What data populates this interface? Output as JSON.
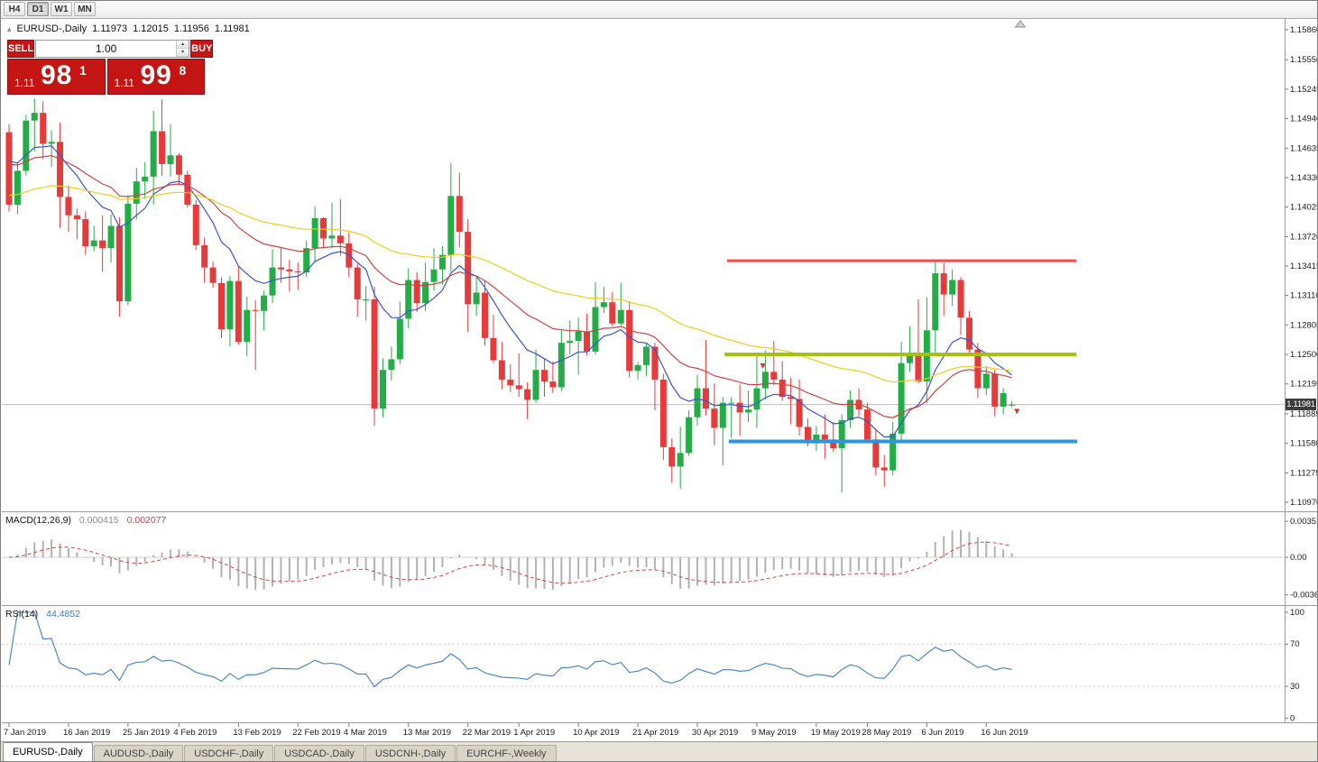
{
  "toolbar": {
    "timeframes": [
      {
        "label": "H4",
        "active": false
      },
      {
        "label": "D1",
        "active": true
      },
      {
        "label": "W1",
        "active": false
      },
      {
        "label": "MN",
        "active": false
      }
    ]
  },
  "chart_header": {
    "symbol": "EURUSD-,Daily",
    "open": "1.11973",
    "high": "1.12015",
    "low": "1.11956",
    "close": "1.11981"
  },
  "trade_panel": {
    "sell_label": "SELL",
    "buy_label": "BUY",
    "volume": "1.00",
    "sell_price": {
      "small": "1.11",
      "big": "98",
      "sup": "1"
    },
    "buy_price": {
      "small": "1.11",
      "big": "99",
      "sup": "8"
    }
  },
  "price_axis": {
    "labels": [
      "1.15860",
      "1.15550",
      "1.15245",
      "1.14940",
      "1.14635",
      "1.14330",
      "1.14025",
      "1.13720",
      "1.13415",
      "1.13110",
      "1.12805",
      "1.12500",
      "1.12195",
      "1.11885",
      "1.11580",
      "1.11275",
      "1.10970"
    ],
    "current": "1.11981"
  },
  "indicators": {
    "macd": {
      "label": "MACD(12,26,9)",
      "value_main": "0.000415",
      "value_signal": "0.002077",
      "axis": [
        "0.003518",
        "0.00",
        "-0.00367"
      ]
    },
    "rsi": {
      "label": "RSI(14)",
      "value": "44.4852",
      "axis": [
        "100",
        "70",
        "30",
        "0"
      ]
    }
  },
  "date_axis": {
    "labels": [
      {
        "text": "7 Jan 2019",
        "index": 0
      },
      {
        "text": "16 Jan 2019",
        "index": 7
      },
      {
        "text": "25 Jan 2019",
        "index": 14
      },
      {
        "text": "4 Feb 2019",
        "index": 20
      },
      {
        "text": "13 Feb 2019",
        "index": 27
      },
      {
        "text": "22 Feb 2019",
        "index": 34
      },
      {
        "text": "4 Mar 2019",
        "index": 40
      },
      {
        "text": "13 Mar 2019",
        "index": 47
      },
      {
        "text": "22 Mar 2019",
        "index": 54
      },
      {
        "text": "1 Apr 2019",
        "index": 60
      },
      {
        "text": "10 Apr 2019",
        "index": 67
      },
      {
        "text": "21 Apr 2019",
        "index": 74
      },
      {
        "text": "30 Apr 2019",
        "index": 81
      },
      {
        "text": "9 May 2019",
        "index": 88
      },
      {
        "text": "19 May 2019",
        "index": 95
      },
      {
        "text": "28 May 2019",
        "index": 101
      },
      {
        "text": "6 Jun 2019",
        "index": 108
      },
      {
        "text": "16 Jun 2019",
        "index": 115
      }
    ]
  },
  "tabs": [
    {
      "label": "EURUSD-,Daily",
      "active": true
    },
    {
      "label": "AUDUSD-,Daily",
      "active": false
    },
    {
      "label": "USDCHF-,Daily",
      "active": false
    },
    {
      "label": "USDCAD-,Daily",
      "active": false
    },
    {
      "label": "USDCNH-,Daily",
      "active": false
    },
    {
      "label": "EURCHF-,Weekly",
      "active": false
    }
  ],
  "chart_data": {
    "type": "candlestick",
    "symbol": "EURUSD",
    "timeframe": "Daily",
    "title": "EURUSD-,Daily",
    "ylim": [
      1.1097,
      1.1586
    ],
    "colors": {
      "up": "#22ad46",
      "down": "#e73b3b"
    },
    "ohlc": [
      [
        1.148,
        1.1488,
        1.1398,
        1.1405
      ],
      [
        1.1405,
        1.1448,
        1.1395,
        1.144
      ],
      [
        1.144,
        1.1498,
        1.1435,
        1.1492
      ],
      [
        1.1492,
        1.1515,
        1.146,
        1.15
      ],
      [
        1.15,
        1.1512,
        1.1452,
        1.1468
      ],
      [
        1.1468,
        1.1482,
        1.1444,
        1.147
      ],
      [
        1.147,
        1.149,
        1.1381,
        1.1413
      ],
      [
        1.1413,
        1.1425,
        1.1377,
        1.1394
      ],
      [
        1.1394,
        1.1401,
        1.1369,
        1.139
      ],
      [
        1.139,
        1.1398,
        1.1353,
        1.1362
      ],
      [
        1.1362,
        1.1383,
        1.1357,
        1.1368
      ],
      [
        1.1368,
        1.1394,
        1.1336,
        1.136
      ],
      [
        1.136,
        1.1395,
        1.1345,
        1.1383
      ],
      [
        1.1383,
        1.1392,
        1.1289,
        1.1305
      ],
      [
        1.1305,
        1.1415,
        1.1301,
        1.1406
      ],
      [
        1.1406,
        1.1443,
        1.139,
        1.1429
      ],
      [
        1.1429,
        1.1449,
        1.1411,
        1.1434
      ],
      [
        1.1434,
        1.1502,
        1.1405,
        1.1481
      ],
      [
        1.1481,
        1.1514,
        1.1435,
        1.1447
      ],
      [
        1.1447,
        1.1488,
        1.1434,
        1.1456
      ],
      [
        1.1456,
        1.1458,
        1.1425,
        1.1436
      ],
      [
        1.1436,
        1.144,
        1.1402,
        1.1405
      ],
      [
        1.1405,
        1.141,
        1.1358,
        1.1363
      ],
      [
        1.1363,
        1.1371,
        1.1324,
        1.134
      ],
      [
        1.134,
        1.1346,
        1.1319,
        1.1324
      ],
      [
        1.1324,
        1.133,
        1.1267,
        1.1276
      ],
      [
        1.1276,
        1.1331,
        1.1258,
        1.1326
      ],
      [
        1.1326,
        1.1341,
        1.126,
        1.1263
      ],
      [
        1.1263,
        1.131,
        1.1248,
        1.1296
      ],
      [
        1.1296,
        1.1306,
        1.1234,
        1.1295
      ],
      [
        1.1295,
        1.1316,
        1.1275,
        1.1311
      ],
      [
        1.1311,
        1.1359,
        1.1303,
        1.134
      ],
      [
        1.134,
        1.136,
        1.1324,
        1.1338
      ],
      [
        1.1338,
        1.1348,
        1.1315,
        1.1336
      ],
      [
        1.1336,
        1.1345,
        1.1317,
        1.1335
      ],
      [
        1.1335,
        1.1368,
        1.133,
        1.136
      ],
      [
        1.136,
        1.1403,
        1.1345,
        1.1391
      ],
      [
        1.1391,
        1.1392,
        1.136,
        1.137
      ],
      [
        1.137,
        1.1407,
        1.136,
        1.1373
      ],
      [
        1.1373,
        1.1411,
        1.1352,
        1.1365
      ],
      [
        1.1365,
        1.1376,
        1.133,
        1.134
      ],
      [
        1.134,
        1.1344,
        1.1289,
        1.1307
      ],
      [
        1.1307,
        1.1321,
        1.1285,
        1.1307
      ],
      [
        1.1307,
        1.132,
        1.1176,
        1.1194
      ],
      [
        1.1194,
        1.1246,
        1.1185,
        1.1234
      ],
      [
        1.1234,
        1.1258,
        1.1223,
        1.1245
      ],
      [
        1.1245,
        1.1305,
        1.124,
        1.1287
      ],
      [
        1.1287,
        1.1339,
        1.1277,
        1.1327
      ],
      [
        1.1327,
        1.1335,
        1.1294,
        1.1303
      ],
      [
        1.1303,
        1.1345,
        1.1295,
        1.1325
      ],
      [
        1.1325,
        1.136,
        1.1316,
        1.1338
      ],
      [
        1.1338,
        1.1362,
        1.1322,
        1.1353
      ],
      [
        1.1353,
        1.1448,
        1.1336,
        1.1414
      ],
      [
        1.1414,
        1.1438,
        1.1361,
        1.1377
      ],
      [
        1.1377,
        1.139,
        1.1273,
        1.1302
      ],
      [
        1.1302,
        1.133,
        1.129,
        1.1314
      ],
      [
        1.1314,
        1.1327,
        1.1259,
        1.1267
      ],
      [
        1.1267,
        1.1291,
        1.1241,
        1.1244
      ],
      [
        1.1244,
        1.1263,
        1.1214,
        1.1224
      ],
      [
        1.1224,
        1.124,
        1.1211,
        1.1218
      ],
      [
        1.1218,
        1.1251,
        1.1206,
        1.1214
      ],
      [
        1.1214,
        1.1221,
        1.1183,
        1.1203
      ],
      [
        1.1203,
        1.1255,
        1.12,
        1.1234
      ],
      [
        1.1234,
        1.1245,
        1.1206,
        1.1222
      ],
      [
        1.1222,
        1.1243,
        1.121,
        1.1216
      ],
      [
        1.1216,
        1.1275,
        1.1212,
        1.1262
      ],
      [
        1.1262,
        1.1285,
        1.125,
        1.1264
      ],
      [
        1.1264,
        1.1288,
        1.1229,
        1.1274
      ],
      [
        1.1274,
        1.1292,
        1.1249,
        1.1253
      ],
      [
        1.1253,
        1.1325,
        1.125,
        1.1299
      ],
      [
        1.1299,
        1.132,
        1.1293,
        1.1304
      ],
      [
        1.1304,
        1.1315,
        1.1279,
        1.1282
      ],
      [
        1.1282,
        1.1324,
        1.128,
        1.1296
      ],
      [
        1.1296,
        1.1305,
        1.1226,
        1.1233
      ],
      [
        1.1233,
        1.1242,
        1.1224,
        1.1239
      ],
      [
        1.1239,
        1.1262,
        1.1228,
        1.1258
      ],
      [
        1.1258,
        1.1262,
        1.1192,
        1.1224
      ],
      [
        1.1224,
        1.123,
        1.1141,
        1.1154
      ],
      [
        1.1154,
        1.1163,
        1.1117,
        1.1134
      ],
      [
        1.1134,
        1.1175,
        1.1111,
        1.1148
      ],
      [
        1.1148,
        1.1192,
        1.1145,
        1.1185
      ],
      [
        1.1185,
        1.1229,
        1.1176,
        1.1215
      ],
      [
        1.1215,
        1.1265,
        1.1187,
        1.1194
      ],
      [
        1.1194,
        1.122,
        1.1156,
        1.1174
      ],
      [
        1.1174,
        1.1206,
        1.1135,
        1.12
      ],
      [
        1.12,
        1.1206,
        1.1164,
        1.12
      ],
      [
        1.12,
        1.1219,
        1.1166,
        1.119
      ],
      [
        1.119,
        1.1213,
        1.118,
        1.1193
      ],
      [
        1.1193,
        1.1251,
        1.1174,
        1.1215
      ],
      [
        1.1215,
        1.1254,
        1.1203,
        1.1232
      ],
      [
        1.1232,
        1.1264,
        1.1218,
        1.1224
      ],
      [
        1.1224,
        1.1243,
        1.1202,
        1.1206
      ],
      [
        1.1206,
        1.1226,
        1.1178,
        1.1204
      ],
      [
        1.1204,
        1.1224,
        1.1166,
        1.1175
      ],
      [
        1.1175,
        1.1184,
        1.1155,
        1.1158
      ],
      [
        1.1158,
        1.1176,
        1.115,
        1.1167
      ],
      [
        1.1167,
        1.1188,
        1.1142,
        1.1162
      ],
      [
        1.1162,
        1.118,
        1.1149,
        1.1153
      ],
      [
        1.1153,
        1.1188,
        1.1107,
        1.1182
      ],
      [
        1.1182,
        1.1213,
        1.1174,
        1.1203
      ],
      [
        1.1203,
        1.1215,
        1.1186,
        1.1193
      ],
      [
        1.1193,
        1.12,
        1.1159,
        1.1162
      ],
      [
        1.1162,
        1.1173,
        1.1125,
        1.1133
      ],
      [
        1.1133,
        1.1146,
        1.1113,
        1.113
      ],
      [
        1.113,
        1.118,
        1.1125,
        1.1168
      ],
      [
        1.1168,
        1.1263,
        1.116,
        1.1241
      ],
      [
        1.1241,
        1.1279,
        1.1232,
        1.1252
      ],
      [
        1.1252,
        1.1307,
        1.122,
        1.1222
      ],
      [
        1.1222,
        1.1309,
        1.12,
        1.1275
      ],
      [
        1.1275,
        1.1348,
        1.1251,
        1.1334
      ],
      [
        1.1334,
        1.1345,
        1.129,
        1.1312
      ],
      [
        1.1312,
        1.1338,
        1.13,
        1.1327
      ],
      [
        1.1327,
        1.133,
        1.127,
        1.1288
      ],
      [
        1.1288,
        1.1295,
        1.1248,
        1.1255
      ],
      [
        1.1255,
        1.1262,
        1.1205,
        1.1215
      ],
      [
        1.1215,
        1.1238,
        1.1208,
        1.123
      ],
      [
        1.123,
        1.1234,
        1.1186,
        1.1196
      ],
      [
        1.1196,
        1.1215,
        1.1188,
        1.121
      ],
      [
        1.11973,
        1.12015,
        1.11956,
        1.11981
      ]
    ],
    "moving_averages": [
      {
        "period": 10,
        "color": "#3c55c8",
        "seed": 1.146
      },
      {
        "period": 25,
        "color": "#cf4343",
        "seed": 1.145
      },
      {
        "period": 55,
        "color": "#eccf1c",
        "seed": 1.1415
      }
    ],
    "trend_lines": [
      {
        "price": 1.1347,
        "from": 84.5,
        "to": 125.6,
        "color": "#f14b4b",
        "width": 3
      },
      {
        "price": 1.125,
        "from": 84.2,
        "to": 125.6,
        "color": "#a6c018",
        "width": 4
      },
      {
        "price": 1.116,
        "from": 84.7,
        "to": 125.7,
        "color": "#2f93dd",
        "width": 4
      }
    ],
    "markers": [
      {
        "index": 88.7,
        "price": 1.1237
      },
      {
        "index": 110,
        "price": 1.1318
      },
      {
        "index": 118.6,
        "price": 1.119
      }
    ],
    "macd": {
      "fast": 12,
      "slow": 26,
      "signal": 9
    },
    "rsi": {
      "period": 14
    }
  }
}
